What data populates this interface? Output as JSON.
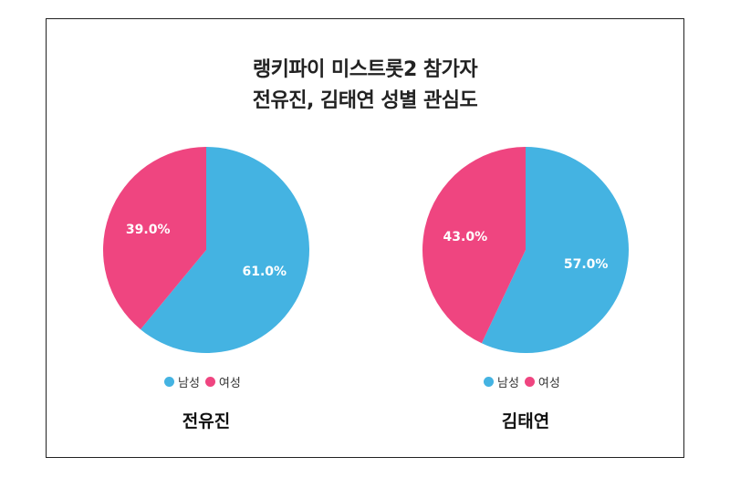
{
  "title_line1": "랭키파이 미스트롯2 참가자",
  "title_line2": "전유진, 김태연 성별 관심도",
  "colors": {
    "male": "#44b3e2",
    "female": "#ef4580"
  },
  "chart_data": [
    {
      "type": "pie",
      "title": "전유진",
      "categories": [
        "남성",
        "여성"
      ],
      "values": [
        61.0,
        39.0
      ],
      "labels": [
        "61.0%",
        "39.0%"
      ],
      "legend": [
        "남성",
        "여성"
      ]
    },
    {
      "type": "pie",
      "title": "김태연",
      "categories": [
        "남성",
        "여성"
      ],
      "values": [
        57.0,
        43.0
      ],
      "labels": [
        "57.0%",
        "43.0%"
      ],
      "legend": [
        "남성",
        "여성"
      ]
    }
  ]
}
